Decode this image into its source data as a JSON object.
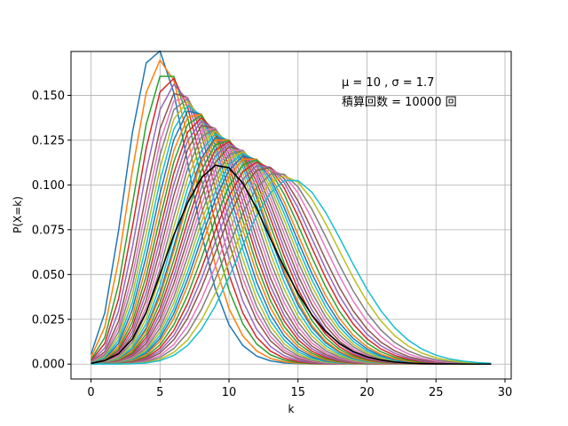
{
  "chart_data": {
    "type": "line",
    "title": "",
    "xlabel": "k",
    "ylabel": "P(X=k)",
    "xlim": [
      -1.45,
      30.45
    ],
    "ylim": [
      -0.0083,
      0.1745
    ],
    "xticks": [
      0,
      5,
      10,
      15,
      20,
      25,
      30
    ],
    "yticks": [
      0.0,
      0.025,
      0.05,
      0.075,
      0.1,
      0.125,
      0.15
    ],
    "ytick_labels": [
      "0.000",
      "0.025",
      "0.050",
      "0.075",
      "0.100",
      "0.125",
      "0.150"
    ],
    "grid": true,
    "annotations": [
      "μ = 10 , σ = 1.7",
      "積算回数 = 10000 回"
    ],
    "k_range": [
      0,
      29
    ],
    "curves_note": "Poisson pmfs over k = 0..29; lambdas of the colored curves (representative subset of simulated draws)",
    "lambdas": [
      5.2,
      5.6,
      6.0,
      6.3,
      6.6,
      6.9,
      7.1,
      7.3,
      7.5,
      7.7,
      7.9,
      8.1,
      8.3,
      8.5,
      8.7,
      8.9,
      9.1,
      9.3,
      9.5,
      9.7,
      9.9,
      10.0,
      10.2,
      10.4,
      10.6,
      10.8,
      11.0,
      11.2,
      11.4,
      11.6,
      11.8,
      12.0,
      12.3,
      12.6,
      12.9,
      13.2,
      13.6,
      14.0,
      14.5,
      15.0
    ],
    "series": [
      {
        "role": "average",
        "color": "#000000",
        "k": [
          0,
          1,
          2,
          3,
          4,
          5,
          6,
          7,
          8,
          9,
          10,
          11,
          12,
          13,
          14,
          15,
          16,
          17,
          18,
          19,
          20,
          21,
          22,
          23,
          24,
          25,
          26,
          27,
          28,
          29
        ],
        "values": [
          0.0004,
          0.002,
          0.0058,
          0.014,
          0.029,
          0.05,
          0.072,
          0.09,
          0.104,
          0.111,
          0.1095,
          0.101,
          0.087,
          0.07,
          0.054,
          0.0395,
          0.0275,
          0.0182,
          0.0115,
          0.007,
          0.0041,
          0.0023,
          0.0012,
          0.0006,
          0.0003,
          0.0001,
          0.0001,
          0.0,
          0.0,
          0.0
        ]
      }
    ]
  },
  "colors": [
    "#1f77b4",
    "#ff7f0e",
    "#2ca02c",
    "#d62728",
    "#9467bd",
    "#8c564b",
    "#e377c2",
    "#7f7f7f",
    "#bcbd22",
    "#17becf"
  ]
}
